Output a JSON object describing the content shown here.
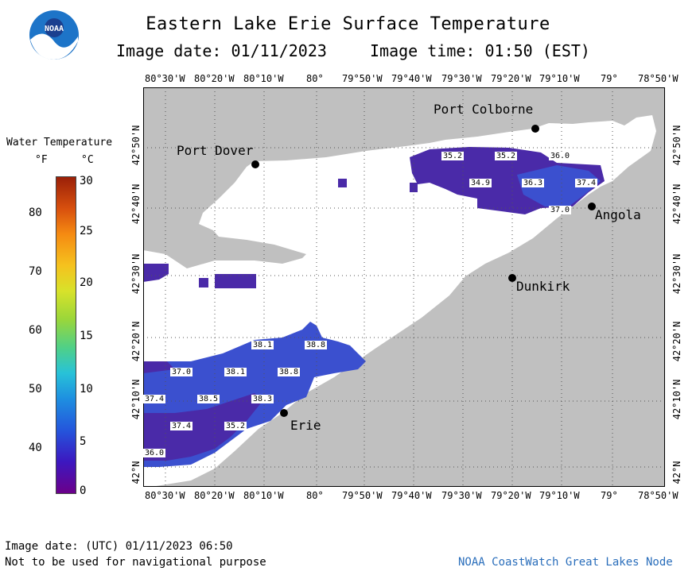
{
  "title": "Eastern Lake Erie Surface Temperature",
  "image_date_label": "Image date: 01/11/2023",
  "image_time_label": "Image time: 01:50 (EST)",
  "logo": {
    "text": "NOAA",
    "colors": {
      "blue": "#1d74c8",
      "white": "#ffffff",
      "navy": "#1b3f8f"
    }
  },
  "lon_labels": [
    "80°30'W",
    "80°20'W",
    "80°10'W",
    "80°",
    "79°50'W",
    "79°40'W",
    "79°30'W",
    "79°20'W",
    "79°10'W",
    "79°",
    "78°50'W"
  ],
  "lat_labels": [
    "42°50'N",
    "42°40'N",
    "42°30'N",
    "42°20'N",
    "42°10'N",
    "42°N"
  ],
  "colorbar": {
    "title": "Water Temperature",
    "unit_f": "°F",
    "unit_c": "°C",
    "f_ticks": [
      "80",
      "70",
      "60",
      "50",
      "40"
    ],
    "c_ticks": [
      "30",
      "25",
      "20",
      "15",
      "10",
      "5",
      "0"
    ]
  },
  "cities": [
    {
      "name": "Port Colborne"
    },
    {
      "name": "Port Dover"
    },
    {
      "name": "Angola"
    },
    {
      "name": "Dunkirk"
    },
    {
      "name": "Erie"
    }
  ],
  "temperature_labels": [
    "35.2",
    "35.2",
    "36.0",
    "34.9",
    "36.3",
    "37.4",
    "37.0",
    "38.1",
    "38.8",
    "37.0",
    "38.1",
    "38.8",
    "37.4",
    "38.5",
    "38.3",
    "37.4",
    "35.2",
    "36.0"
  ],
  "colors": {
    "land": "#c0c0c0",
    "water": "#ffffff",
    "temp_dark": "#5a2aa8",
    "temp_blue": "#3b4fcf",
    "temp_violet": "#4a3ac0"
  },
  "footer": {
    "utc_date": "Image date: (UTC) 01/11/2023  06:50",
    "disclaimer": "Not to be used for navigational purpose",
    "source": "NOAA CoastWatch Great Lakes Node"
  }
}
